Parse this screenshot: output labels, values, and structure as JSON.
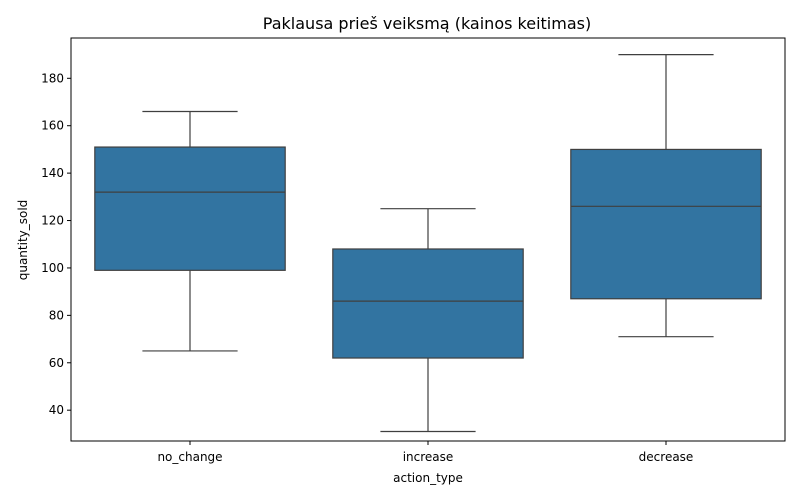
{
  "chart_data": {
    "type": "box",
    "title": "Paklausa prieš veiksmą (kainos keitimas)",
    "xlabel": "action_type",
    "ylabel": "quantity_sold",
    "categories": [
      "no_change",
      "increase",
      "decrease"
    ],
    "boxes": [
      {
        "category": "no_change",
        "whisker_low": 65,
        "q1": 99,
        "median": 132,
        "q3": 151,
        "whisker_high": 166
      },
      {
        "category": "increase",
        "whisker_low": 31,
        "q1": 62,
        "median": 86,
        "q3": 108,
        "whisker_high": 125
      },
      {
        "category": "decrease",
        "whisker_low": 71,
        "q1": 87,
        "median": 126,
        "q3": 150,
        "whisker_high": 190
      }
    ],
    "ylim": [
      27,
      197
    ],
    "yticks": [
      40,
      60,
      80,
      100,
      120,
      140,
      160,
      180
    ],
    "grid": false,
    "box_color": "#3274a1",
    "line_color": "#3f3f3f"
  }
}
